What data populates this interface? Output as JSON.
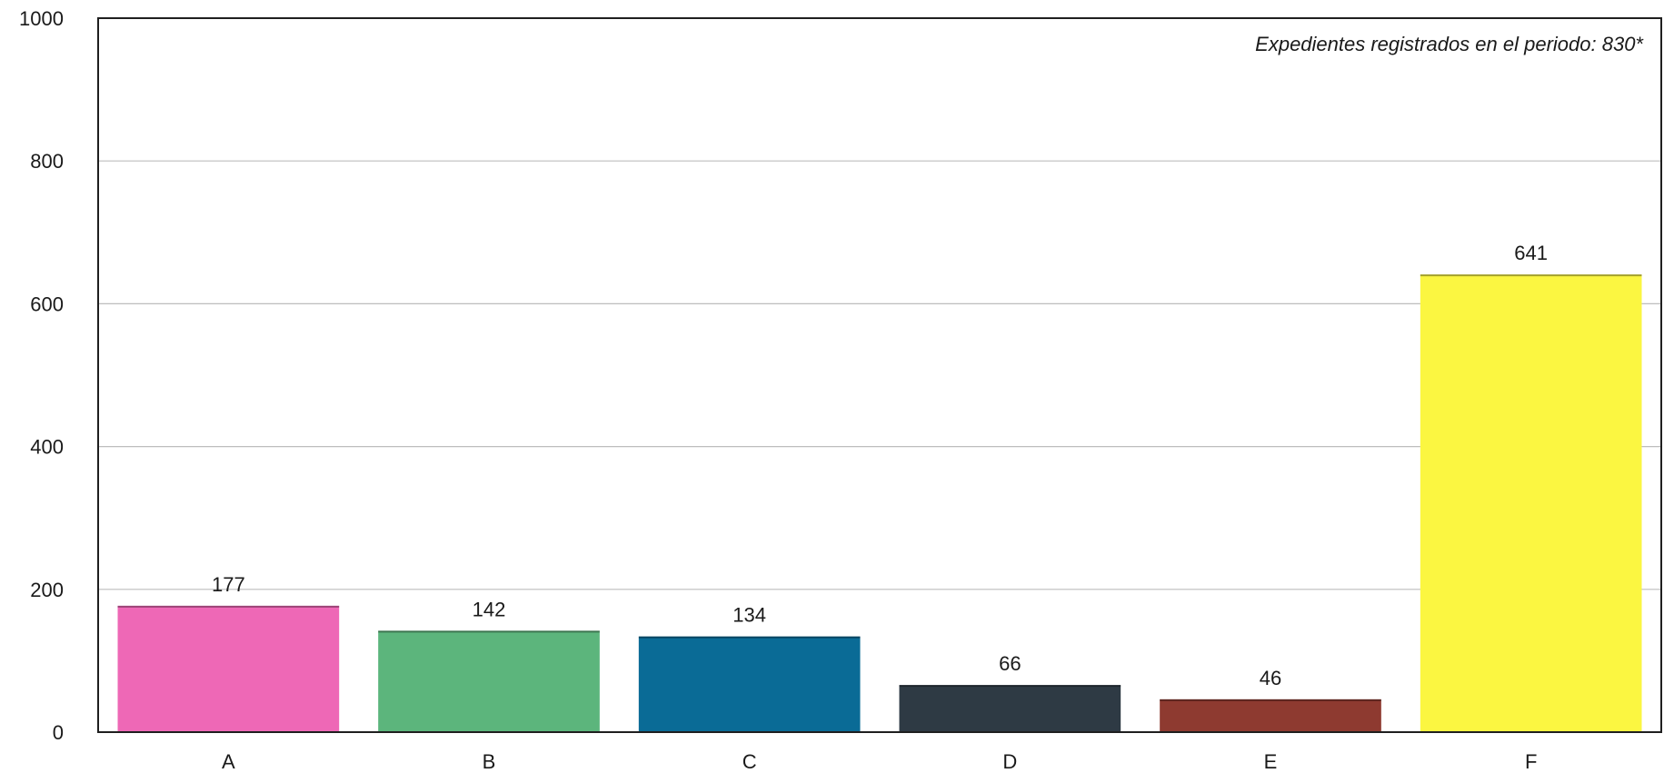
{
  "chart_data": {
    "type": "bar",
    "categories": [
      "A",
      "B",
      "C",
      "D",
      "E",
      "F"
    ],
    "values": [
      177,
      142,
      134,
      66,
      46,
      641
    ],
    "colors": [
      "#ee68b6",
      "#5cb57c",
      "#0a6b96",
      "#2e3a44",
      "#8e3a30",
      "#fbf641"
    ],
    "ylim": [
      0,
      1000
    ],
    "yticks": [
      0,
      200,
      400,
      600,
      800,
      1000
    ],
    "grid": true,
    "annotation": "Expedientes registrados en el periodo:  830*",
    "title": "",
    "xlabel": "",
    "ylabel": ""
  }
}
